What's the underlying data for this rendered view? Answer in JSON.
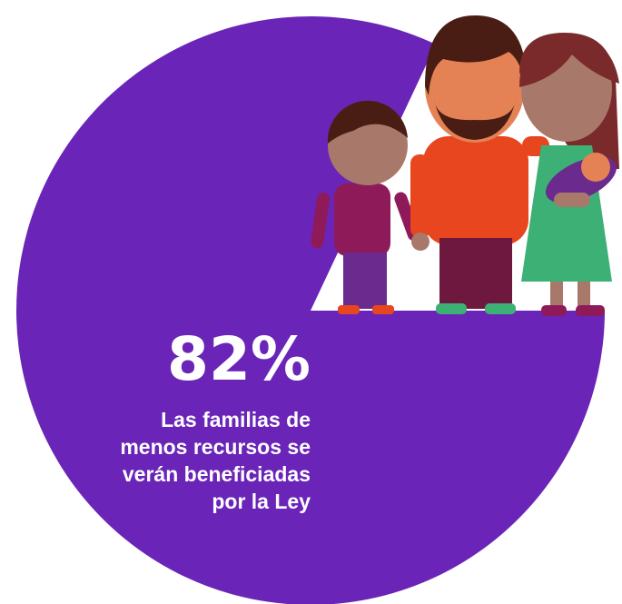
{
  "chart_data": {
    "type": "pie",
    "values": [
      82
    ],
    "value_labels": [
      "82%"
    ],
    "color": "#6a25b8",
    "caption": [
      "Las familias de",
      "menos recursos se",
      "verán beneficiadas",
      "por la Ley"
    ]
  }
}
